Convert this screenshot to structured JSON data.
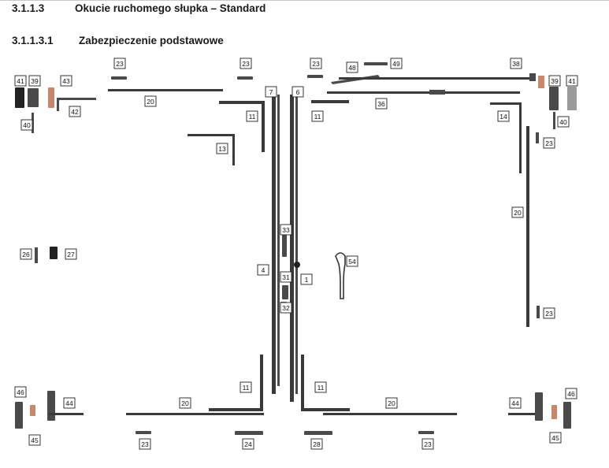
{
  "heading": {
    "number": "3.1.1.3",
    "title": "Okucie ruchomego słupka – Standard"
  },
  "subheading": {
    "number": "3.1.1.3.1",
    "title": "Zabezpieczenie podstawowe"
  },
  "part_numbers": [
    "23",
    "23",
    "23",
    "48",
    "49",
    "38",
    "41",
    "39",
    "43",
    "42",
    "40",
    "20",
    "7",
    "6",
    "11",
    "11",
    "36",
    "39",
    "41",
    "14",
    "40",
    "13",
    "23",
    "20",
    "33",
    "54",
    "26",
    "27",
    "4",
    "31",
    "1",
    "32",
    "23",
    "11",
    "11",
    "46",
    "44",
    "20",
    "20",
    "44",
    "46",
    "45",
    "23",
    "24",
    "28",
    "23",
    "45"
  ]
}
